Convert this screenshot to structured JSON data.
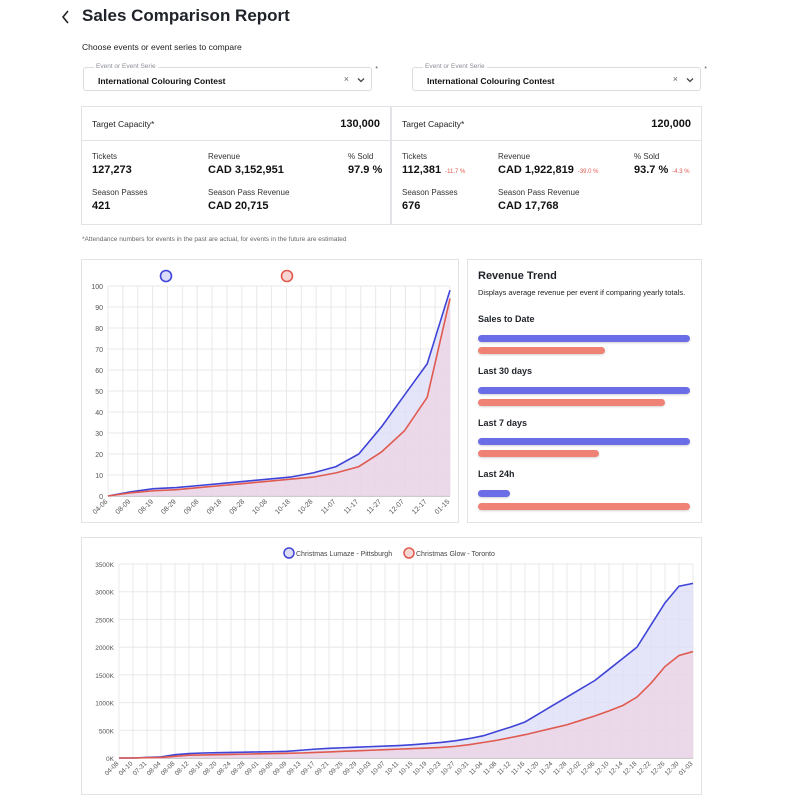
{
  "header": {
    "title": "Sales Comparison Report",
    "subtitle": "Choose events or event series to compare"
  },
  "selectors": [
    {
      "label": "Event or Event Serie",
      "value": "International Colouring Contest",
      "clear": "×",
      "required": "*"
    },
    {
      "label": "Event or Event Serie",
      "value": "International Colouring Contest",
      "clear": "×",
      "required": "*"
    }
  ],
  "cards": [
    {
      "capacity_label": "Target Capacity*",
      "capacity_value": "130,000",
      "tickets_label": "Tickets",
      "tickets_value": "127,273",
      "tickets_delta": "",
      "revenue_label": "Revenue",
      "revenue_value": "CAD 3,152,951",
      "revenue_delta": "",
      "sold_label": "% Sold",
      "sold_value": "97.9 %",
      "sold_delta": "",
      "passes_label": "Season Passes",
      "passes_value": "421",
      "pass_rev_label": "Season Pass Revenue",
      "pass_rev_value": "CAD 20,715"
    },
    {
      "capacity_label": "Target Capacity*",
      "capacity_value": "120,000",
      "tickets_label": "Tickets",
      "tickets_value": "112,381",
      "tickets_delta": "-11.7 %",
      "revenue_label": "Revenue",
      "revenue_value": "CAD 1,922,819",
      "revenue_delta": "-39.0 %",
      "sold_label": "% Sold",
      "sold_value": "93.7 %",
      "sold_delta": "-4.3 %",
      "passes_label": "Season Passes",
      "passes_value": "676",
      "pass_rev_label": "Season Pass Revenue",
      "pass_rev_value": "CAD 17,768"
    }
  ],
  "footnote": "*Attendance numbers for events in the past are actual, for events in the future are estimated",
  "colors": {
    "blue": "#3f44d6",
    "red": "#e05a4f",
    "blue_fill": "#dcdcf8",
    "red_fill": "#ecd3e3"
  },
  "trend": {
    "title": "Revenue Trend",
    "description": "Displays average revenue per event if comparing yearly totals.",
    "sections": [
      {
        "label": "Sales to Date",
        "blue": 1.0,
        "red": 0.6
      },
      {
        "label": "Last 30 days",
        "blue": 1.0,
        "red": 0.88
      },
      {
        "label": "Last 7 days",
        "blue": 1.0,
        "red": 0.57
      },
      {
        "label": "Last 24h",
        "blue": 0.15,
        "red": 1.0
      }
    ]
  },
  "chart_data": [
    {
      "type": "area",
      "legend": [
        "",
        ""
      ],
      "ylim": [
        0,
        100
      ],
      "yticks": [
        "0",
        "10",
        "20",
        "30",
        "40",
        "50",
        "60",
        "70",
        "80",
        "90",
        "100"
      ],
      "categories": [
        "04-06",
        "08-09",
        "08-19",
        "08-29",
        "09-08",
        "09-18",
        "09-28",
        "10-08",
        "10-18",
        "10-28",
        "11-07",
        "11-17",
        "11-27",
        "12-07",
        "12-17",
        "01-15"
      ],
      "series": [
        {
          "color": "blue",
          "values": [
            0,
            2,
            3.5,
            4,
            5,
            6,
            7,
            8,
            9,
            11,
            14,
            20,
            33,
            48,
            63,
            98
          ]
        },
        {
          "color": "red",
          "values": [
            0,
            1.5,
            2.5,
            3,
            4,
            5,
            6,
            7,
            8,
            9,
            11,
            14,
            21,
            31,
            47,
            94
          ]
        }
      ]
    },
    {
      "type": "area",
      "legend": [
        "Christmas Lumaze - Pittsburgh",
        "Christmas Glow - Toronto"
      ],
      "ylim": [
        0,
        3500
      ],
      "yticks": [
        "0K",
        "500K",
        "1000K",
        "1500K",
        "2000K",
        "2500K",
        "3000K",
        "3500K"
      ],
      "categories": [
        "04-08",
        "04-10",
        "07-31",
        "08-04",
        "08-08",
        "08-12",
        "08-16",
        "08-20",
        "08-24",
        "08-28",
        "09-01",
        "09-05",
        "09-09",
        "09-13",
        "09-17",
        "09-21",
        "09-25",
        "09-29",
        "10-03",
        "10-07",
        "10-11",
        "10-15",
        "10-19",
        "10-23",
        "10-27",
        "10-31",
        "11-04",
        "11-08",
        "11-12",
        "11-16",
        "11-20",
        "11-24",
        "11-28",
        "12-02",
        "12-06",
        "12-10",
        "12-14",
        "12-18",
        "12-22",
        "12-26",
        "12-30",
        "01-03"
      ],
      "series": [
        {
          "name": "Christmas Lumaze - Pittsburgh",
          "color": "blue",
          "values": [
            0,
            0,
            10,
            20,
            60,
            80,
            90,
            95,
            100,
            105,
            110,
            115,
            120,
            140,
            160,
            175,
            185,
            195,
            205,
            215,
            225,
            240,
            260,
            280,
            310,
            350,
            400,
            480,
            560,
            650,
            800,
            950,
            1100,
            1250,
            1400,
            1600,
            1800,
            2000,
            2400,
            2800,
            3100,
            3150
          ]
        },
        {
          "name": "Christmas Glow - Toronto",
          "color": "red",
          "values": [
            0,
            0,
            5,
            10,
            30,
            50,
            55,
            60,
            65,
            70,
            75,
            80,
            85,
            90,
            100,
            110,
            120,
            130,
            140,
            150,
            160,
            170,
            180,
            190,
            210,
            240,
            280,
            320,
            370,
            420,
            480,
            540,
            600,
            680,
            760,
            850,
            950,
            1100,
            1350,
            1650,
            1850,
            1920
          ]
        }
      ]
    }
  ]
}
